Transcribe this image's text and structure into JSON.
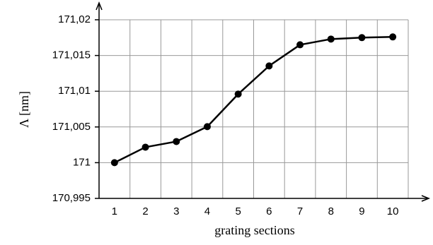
{
  "chart_data": {
    "type": "line",
    "x_label": "grating sections",
    "y_label": "Λ [nm]",
    "categories": [
      "1",
      "2",
      "3",
      "4",
      "5",
      "6",
      "7",
      "8",
      "9",
      "10"
    ],
    "series": [
      {
        "name": "Λ",
        "color": "#000000",
        "values": [
          171.0,
          171.00217,
          171.00296,
          171.00504,
          171.0096,
          171.01354,
          171.0165,
          171.0173,
          171.0175,
          171.0176
        ]
      }
    ],
    "ylim": [
      170.995,
      171.02
    ],
    "yticks": [
      {
        "value": 170.995,
        "label": "170,995"
      },
      171,
      {
        "value": 171.005,
        "label": "171,005"
      },
      {
        "value": 171.01,
        "label": "171,01"
      },
      {
        "value": 171.015,
        "label": "171,015"
      },
      {
        "value": 171.02,
        "label": "171,02"
      }
    ],
    "grid": true
  }
}
